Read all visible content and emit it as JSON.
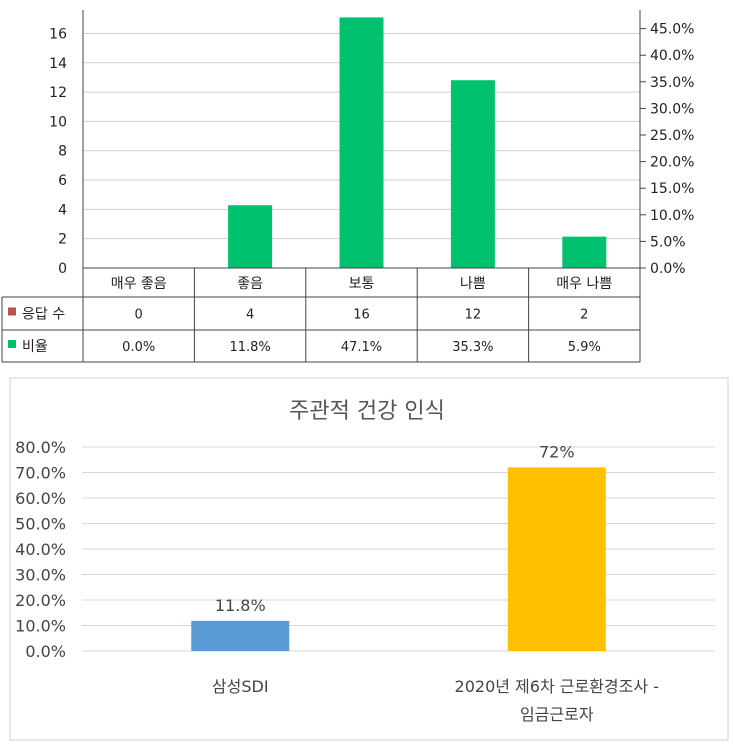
{
  "chart_data": [
    {
      "type": "bar",
      "title": "",
      "categories": [
        "매우 좋음",
        "좋음",
        "보통",
        "나쁨",
        "매우 나쁨"
      ],
      "series": [
        {
          "name": "응답 수",
          "values": [
            0,
            4,
            16,
            12,
            2
          ],
          "color": "#c0504d"
        },
        {
          "name": "비율",
          "values": [
            0.0,
            11.8,
            47.1,
            35.3,
            5.9
          ],
          "color": "#00c26e"
        }
      ],
      "table_values": {
        "응답 수": [
          "0",
          "4",
          "16",
          "12",
          "2"
        ],
        "비율": [
          "0.0%",
          "11.8%",
          "47.1%",
          "35.3%",
          "5.9%"
        ]
      },
      "y_left_ticks": [
        "0",
        "2",
        "4",
        "6",
        "8",
        "10",
        "12",
        "14",
        "16"
      ],
      "y_right_ticks": [
        "0.0%",
        "5.0%",
        "10.0%",
        "15.0%",
        "20.0%",
        "25.0%",
        "30.0%",
        "35.0%",
        "40.0%",
        "45.0%"
      ],
      "ylim_left": [
        0,
        17.6
      ],
      "ylim_right": [
        0,
        48.5
      ],
      "grid": true,
      "legend": "data-table"
    },
    {
      "type": "bar",
      "title": "주관적 건강 인식",
      "categories_lines": [
        [
          "삼성SDI"
        ],
        [
          "2020년 제6차 근로환경조사 -",
          "임금근로자"
        ]
      ],
      "values": [
        11.8,
        72
      ],
      "value_labels": [
        "11.8%",
        "72%"
      ],
      "colors": [
        "#5b9bd5",
        "#ffc000"
      ],
      "y_ticks": [
        "0.0%",
        "10.0%",
        "20.0%",
        "30.0%",
        "40.0%",
        "50.0%",
        "60.0%",
        "70.0%",
        "80.0%"
      ],
      "ylim": [
        0,
        80
      ],
      "grid": true,
      "legend": "none"
    }
  ]
}
